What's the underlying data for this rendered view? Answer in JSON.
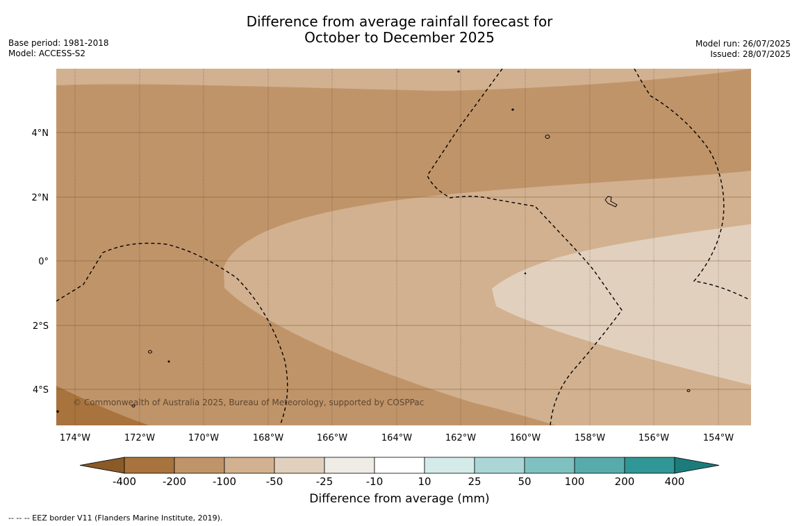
{
  "title": "Difference from average rainfall forecast for\nOctober to December 2025",
  "meta_left": [
    "Base period: 1981-2018",
    "Model: ACCESS-S2"
  ],
  "meta_right": [
    "Model run: 26/07/2025",
    "Issued: 28/07/2025"
  ],
  "copyright": "© Commonwealth of Australia 2025, Bureau of Meteorology, supported by COSPPac",
  "map": {
    "lon_ticks": [
      "174°W",
      "172°W",
      "170°W",
      "168°W",
      "166°W",
      "164°W",
      "162°W",
      "160°W",
      "158°W",
      "156°W",
      "154°W"
    ],
    "lat_ticks": [
      "4°N",
      "2°N",
      "0°",
      "2°S",
      "4°S"
    ]
  },
  "colorbar": {
    "label": "Difference from average (mm)",
    "ticks": [
      "-400",
      "-200",
      "-100",
      "-50",
      "-25",
      "-10",
      "10",
      "25",
      "50",
      "100",
      "200",
      "400"
    ],
    "colors": [
      "#8a5a28",
      "#a8733d",
      "#c09469",
      "#d2b190",
      "#e2d0be",
      "#efebe5",
      "#ffffff",
      "#d4ebe9",
      "#acd6d6",
      "#7fc1c0",
      "#58abab",
      "#309796",
      "#1c7c7b"
    ]
  },
  "footnote": "--  --  -- EEZ border V11 (Flanders Marine Institute, 2019)."
}
